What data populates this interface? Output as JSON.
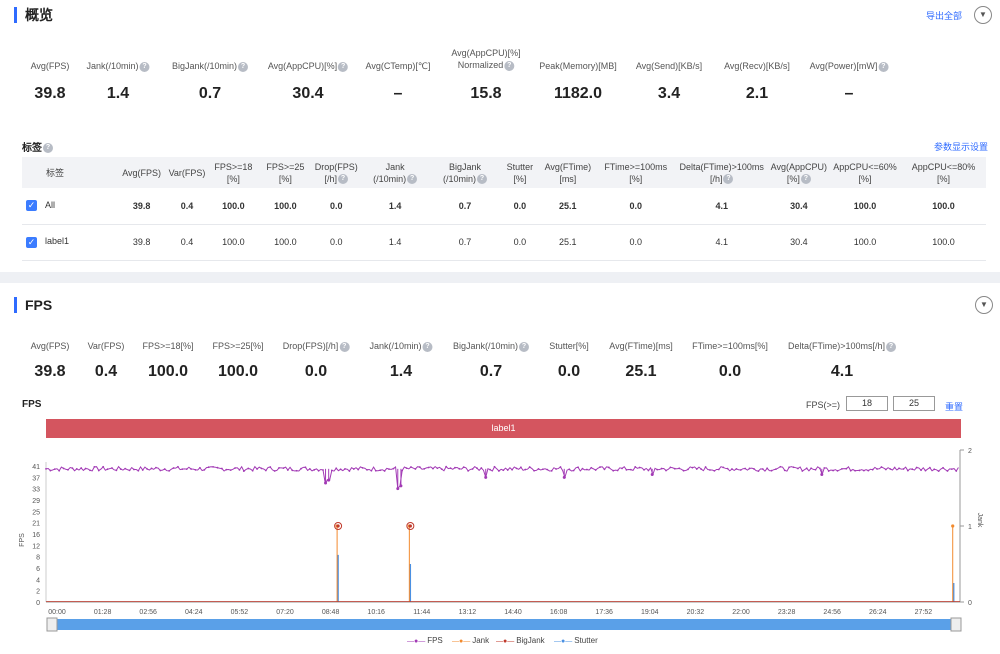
{
  "overview": {
    "title": "概览",
    "export_label": "导出全部",
    "stats": [
      {
        "label": "Avg(FPS)",
        "value": "39.8",
        "help": false
      },
      {
        "label": "Jank(/10min)",
        "value": "1.4",
        "help": true
      },
      {
        "label": "BigJank(/10min)",
        "value": "0.7",
        "help": true
      },
      {
        "label": "Avg(AppCPU)[%]",
        "value": "30.4",
        "help": true
      },
      {
        "label": "Avg(CTemp)[℃]",
        "value": "–",
        "help": false
      },
      {
        "label": "Avg(AppCPU)[%]",
        "label2": "Normalized",
        "value": "15.8",
        "help": true
      },
      {
        "label": "Peak(Memory)[MB]",
        "value": "1182.0",
        "help": false
      },
      {
        "label": "Avg(Send)[KB/s]",
        "value": "3.4",
        "help": false
      },
      {
        "label": "Avg(Recv)[KB/s]",
        "value": "2.1",
        "help": false
      },
      {
        "label": "Avg(Power)[mW]",
        "value": "–",
        "help": true
      }
    ],
    "tags_title": "标签",
    "settings_label": "参数显示设置",
    "table": {
      "headers": [
        {
          "l1": "标签",
          "l2": "",
          "help": false
        },
        {
          "l1": "Avg(FPS)",
          "l2": "",
          "help": false
        },
        {
          "l1": "Var(FPS)",
          "l2": "",
          "help": false
        },
        {
          "l1": "FPS>=18",
          "l2": "[%]",
          "help": false
        },
        {
          "l1": "FPS>=25",
          "l2": "[%]",
          "help": false
        },
        {
          "l1": "Drop(FPS)",
          "l2": "[/h]",
          "help": true
        },
        {
          "l1": "Jank",
          "l2": "(/10min)",
          "help": true
        },
        {
          "l1": "BigJank",
          "l2": "(/10min)",
          "help": true
        },
        {
          "l1": "Stutter",
          "l2": "[%]",
          "help": false
        },
        {
          "l1": "Avg(FTime)",
          "l2": "[ms]",
          "help": false
        },
        {
          "l1": "FTime>=100ms",
          "l2": "[%]",
          "help": false
        },
        {
          "l1": "Delta(FTime)>100ms",
          "l2": "[/h]",
          "help": true
        },
        {
          "l1": "Avg(AppCPU)",
          "l2": "[%]",
          "help": true
        },
        {
          "l1": "AppCPU<=60%",
          "l2": "[%]",
          "help": false
        },
        {
          "l1": "AppCPU<=80%",
          "l2": "[%]",
          "help": false
        }
      ],
      "rows": [
        {
          "name": "All",
          "cells": [
            "39.8",
            "0.4",
            "100.0",
            "100.0",
            "0.0",
            "1.4",
            "0.7",
            "0.0",
            "25.1",
            "0.0",
            "4.1",
            "30.4",
            "100.0",
            "100.0"
          ]
        },
        {
          "name": "label1",
          "cells": [
            "39.8",
            "0.4",
            "100.0",
            "100.0",
            "0.0",
            "1.4",
            "0.7",
            "0.0",
            "25.1",
            "0.0",
            "4.1",
            "30.4",
            "100.0",
            "100.0"
          ]
        }
      ]
    }
  },
  "fps_section": {
    "title": "FPS",
    "stats": [
      {
        "label": "Avg(FPS)",
        "value": "39.8",
        "help": false
      },
      {
        "label": "Var(FPS)",
        "value": "0.4",
        "help": false
      },
      {
        "label": "FPS>=18[%]",
        "value": "100.0",
        "help": false
      },
      {
        "label": "FPS>=25[%]",
        "value": "100.0",
        "help": false
      },
      {
        "label": "Drop(FPS)[/h]",
        "value": "0.0",
        "help": true
      },
      {
        "label": "Jank(/10min)",
        "value": "1.4",
        "help": true
      },
      {
        "label": "BigJank(/10min)",
        "value": "0.7",
        "help": true
      },
      {
        "label": "Stutter[%]",
        "value": "0.0",
        "help": false
      },
      {
        "label": "Avg(FTime)[ms]",
        "value": "25.1",
        "help": false
      },
      {
        "label": "FTime>=100ms[%]",
        "value": "0.0",
        "help": false
      },
      {
        "label": "Delta(FTime)>100ms[/h]",
        "value": "4.1",
        "help": true
      }
    ],
    "chart_title": "FPS",
    "threshold_label": "FPS(>=)",
    "threshold_low": "18",
    "threshold_high": "25",
    "reset_label": "重置",
    "band_label": "label1"
  },
  "chart_data": {
    "type": "line",
    "ylabel": "FPS",
    "y2label": "Jank",
    "y_ticks": [
      0,
      2,
      4,
      6,
      8,
      12,
      16,
      21,
      25,
      29,
      33,
      37,
      41
    ],
    "y2_ticks": [
      0,
      1,
      2
    ],
    "x_ticks": [
      "00:00",
      "01:28",
      "02:56",
      "04:24",
      "05:52",
      "07:20",
      "08:48",
      "10:16",
      "11:44",
      "13:12",
      "14:40",
      "16:08",
      "17:36",
      "19:04",
      "20:32",
      "22:00",
      "23:28",
      "24:56",
      "26:24",
      "27:52"
    ],
    "series": [
      {
        "name": "FPS",
        "color": "#a23ab5",
        "baseline": 40,
        "dips": [
          [
            8.9,
            35
          ],
          [
            9.0,
            36
          ],
          [
            11.2,
            33
          ],
          [
            11.3,
            34
          ],
          [
            14.0,
            37
          ],
          [
            16.5,
            37
          ],
          [
            19.3,
            38
          ],
          [
            24.7,
            38
          ]
        ]
      },
      {
        "name": "Jank",
        "color": "#f28a2e",
        "spikes": [
          [
            9.3,
            1
          ],
          [
            11.6,
            1
          ],
          [
            28.9,
            1
          ]
        ]
      },
      {
        "name": "BigJank",
        "color": "#c0392b",
        "spikes": [
          [
            9.3,
            1
          ],
          [
            11.6,
            1
          ]
        ]
      },
      {
        "name": "Stutter",
        "color": "#4a90e2",
        "spikes": [
          [
            9.3,
            0.62
          ],
          [
            11.6,
            0.5
          ],
          [
            28.9,
            0.25
          ]
        ]
      }
    ]
  },
  "colors": {
    "accent": "#2f6bff",
    "band": "#d4555f"
  }
}
